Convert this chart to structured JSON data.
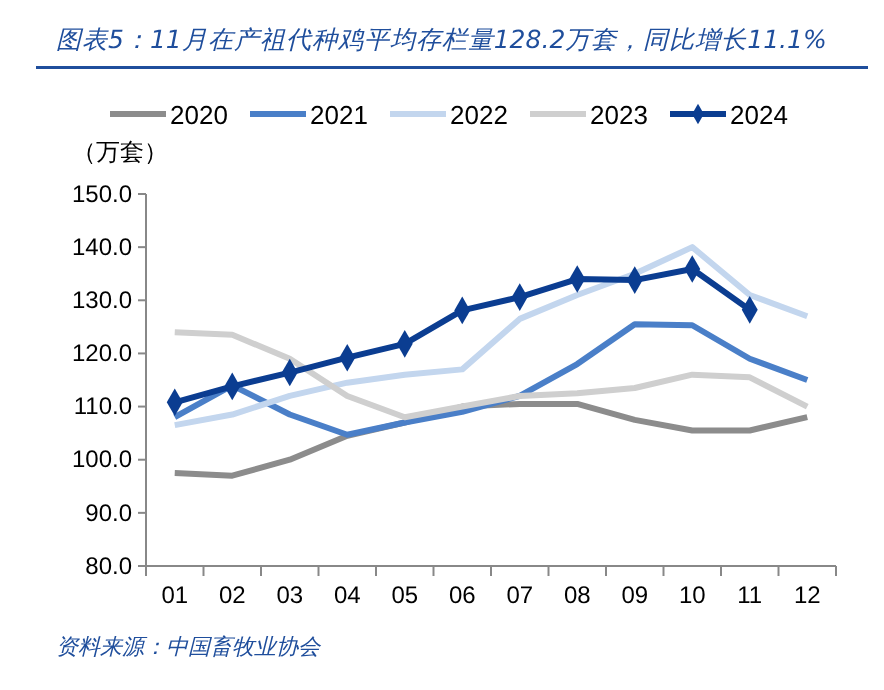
{
  "chart_data": {
    "type": "line",
    "title": "图表5：11月在产祖代种鸡平均存栏量128.2万套，同比增长11.1%",
    "ylabel": "（万套）",
    "categories": [
      "01",
      "02",
      "03",
      "04",
      "05",
      "06",
      "07",
      "08",
      "09",
      "10",
      "11",
      "12"
    ],
    "series": [
      {
        "name": "2020",
        "color": "#8c8c8c",
        "marker": "none",
        "values": [
          97.5,
          97,
          100,
          104.5,
          107,
          110,
          110.5,
          110.5,
          107.5,
          105.5,
          105.5,
          108
        ]
      },
      {
        "name": "2021",
        "color": "#4a7fc8",
        "marker": "none",
        "values": [
          108,
          114,
          108.5,
          104.7,
          107,
          109,
          112,
          118,
          125.5,
          125.3,
          119,
          115
        ]
      },
      {
        "name": "2022",
        "color": "#c3d6ee",
        "marker": "none",
        "values": [
          106.5,
          108.5,
          112,
          114.5,
          116,
          117,
          126.5,
          131,
          135,
          140,
          131,
          127
        ]
      },
      {
        "name": "2023",
        "color": "#cfcfcf",
        "marker": "none",
        "values": [
          124,
          123.5,
          119,
          112,
          108,
          110,
          112,
          112.5,
          113.5,
          116,
          115.5,
          110
        ]
      },
      {
        "name": "2024",
        "color": "#0b3d91",
        "marker": "diamond",
        "values": [
          110.8,
          113.8,
          116.4,
          119.2,
          121.8,
          128.1,
          130.6,
          134,
          133.8,
          135.9,
          128.2,
          null
        ]
      }
    ],
    "ylim": [
      80,
      150
    ],
    "yticks": [
      {
        "value": 80,
        "label": "80.0"
      },
      {
        "value": 90,
        "label": "90.0"
      },
      {
        "value": 100,
        "label": "100.0"
      },
      {
        "value": 110,
        "label": "110.0"
      },
      {
        "value": 120,
        "label": "120.0"
      },
      {
        "value": 130,
        "label": "130.0"
      },
      {
        "value": 140,
        "label": "140.0"
      },
      {
        "value": 150,
        "label": "150.0"
      }
    ],
    "grid": false,
    "legend": "top",
    "annotations": [
      "资料来源：中国畜牧业协会"
    ]
  }
}
